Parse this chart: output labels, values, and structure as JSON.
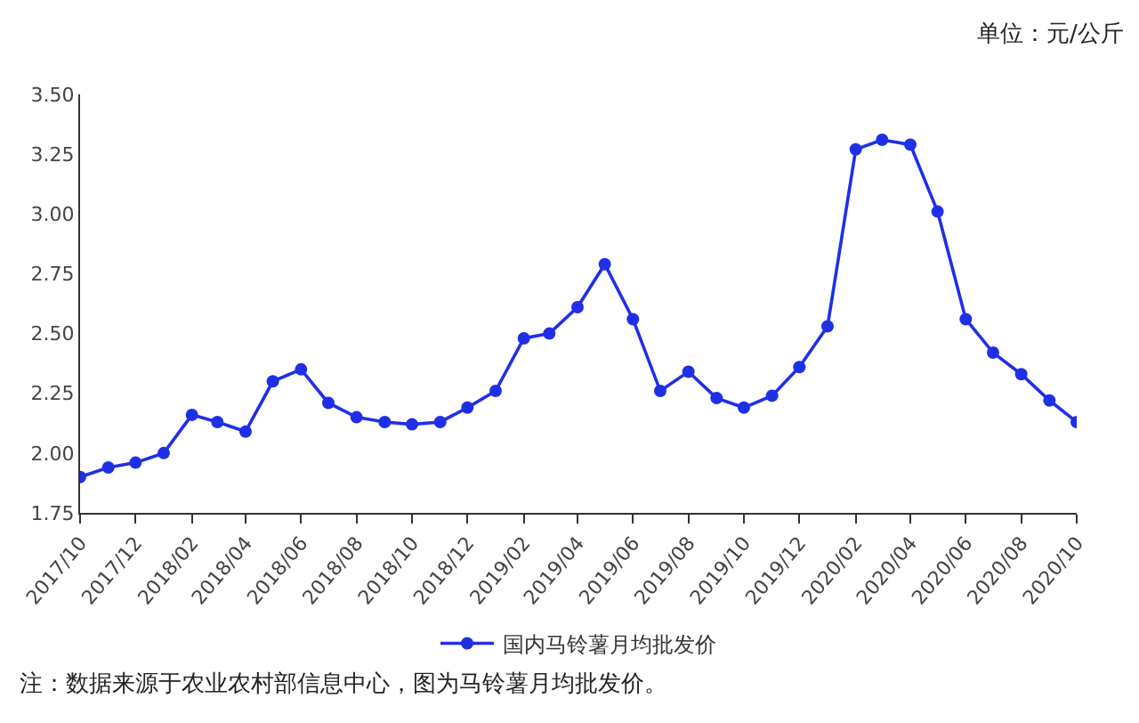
{
  "chart_data": {
    "type": "line",
    "x": [
      "2017-10",
      "2017-11",
      "2017-12",
      "2018-01",
      "2018-02",
      "2018-03",
      "2018-04",
      "2018-05",
      "2018-06",
      "2018-07",
      "2018-08",
      "2018-09",
      "2018-10",
      "2018-11",
      "2018-12",
      "2019-01",
      "2019-02",
      "2019-03",
      "2019-04",
      "2019-05",
      "2019-06",
      "2019-07",
      "2019-08",
      "2019-09",
      "2019-10",
      "2019-11",
      "2019-12",
      "2020-01",
      "2020-02",
      "2020-03",
      "2020-04",
      "2020-05",
      "2020-06",
      "2020-07",
      "2020-08",
      "2020-09",
      "2020-10"
    ],
    "series": [
      {
        "name": "国内马铃薯月均批发价",
        "color": "#1f2fe8",
        "values": [
          1.9,
          1.94,
          1.96,
          2.0,
          2.16,
          2.13,
          2.09,
          2.3,
          2.35,
          2.21,
          2.15,
          2.13,
          2.12,
          2.13,
          2.19,
          2.26,
          2.48,
          2.5,
          2.61,
          2.79,
          2.56,
          2.26,
          2.34,
          2.23,
          2.19,
          2.24,
          2.36,
          2.53,
          3.27,
          3.31,
          3.29,
          3.01,
          2.56,
          2.42,
          2.33,
          2.22,
          2.13
        ]
      }
    ],
    "xlim": [
      "2017-10",
      "2020-10"
    ],
    "xticks": [
      {
        "value": "2017-10",
        "label": "2017/10"
      },
      {
        "value": "2017-12",
        "label": "2017/12"
      },
      {
        "value": "2018-02",
        "label": "2018/02"
      },
      {
        "value": "2018-04",
        "label": "2018/04"
      },
      {
        "value": "2018-06",
        "label": "2018/06"
      },
      {
        "value": "2018-08",
        "label": "2018/08"
      },
      {
        "value": "2018-10",
        "label": "2018/10"
      },
      {
        "value": "2018-12",
        "label": "2018/12"
      },
      {
        "value": "2019-02",
        "label": "2019/02"
      },
      {
        "value": "2019-04",
        "label": "2019/04"
      },
      {
        "value": "2019-06",
        "label": "2019/06"
      },
      {
        "value": "2019-08",
        "label": "2019/08"
      },
      {
        "value": "2019-10",
        "label": "2019/10"
      },
      {
        "value": "2019-12",
        "label": "2019/12"
      },
      {
        "value": "2020-02",
        "label": "2020/02"
      },
      {
        "value": "2020-04",
        "label": "2020/04"
      },
      {
        "value": "2020-06",
        "label": "2020/06"
      },
      {
        "value": "2020-08",
        "label": "2020/08"
      },
      {
        "value": "2020-10",
        "label": "2020/10"
      }
    ],
    "ylim": [
      1.75,
      3.5
    ],
    "yticks": [
      {
        "value": 1.75,
        "label": "1.75"
      },
      {
        "value": 2.0,
        "label": "2.00"
      },
      {
        "value": 2.25,
        "label": "2.25"
      },
      {
        "value": 2.5,
        "label": "2.50"
      },
      {
        "value": 2.75,
        "label": "2.75"
      },
      {
        "value": 3.0,
        "label": "3.00"
      },
      {
        "value": 3.25,
        "label": "3.25"
      },
      {
        "value": 3.5,
        "label": "3.50"
      }
    ],
    "annotations": [
      "单位：元/公斤",
      "注：数据来源于农业农村部信息中心，图为马铃薯月均批发价。"
    ],
    "legend": "bottom",
    "marker": "circle",
    "line_style": "solid"
  }
}
